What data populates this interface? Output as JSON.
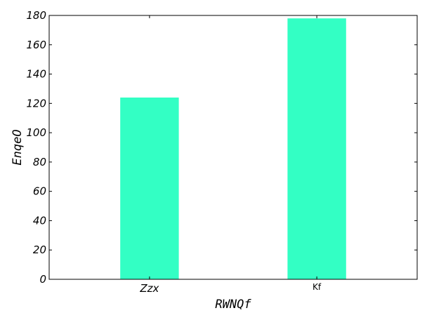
{
  "chart_data": {
    "type": "bar",
    "categories": [
      "Zzx",
      "Kf"
    ],
    "values": [
      124,
      178
    ],
    "xlabel": "RWNQf",
    "ylabel": "EnqeO",
    "ylim": [
      0,
      180
    ],
    "yticks": [
      0,
      20,
      40,
      60,
      80,
      100,
      120,
      140,
      160,
      180
    ],
    "grid": false,
    "legend": "none",
    "bar_color": "#33ffc4"
  }
}
